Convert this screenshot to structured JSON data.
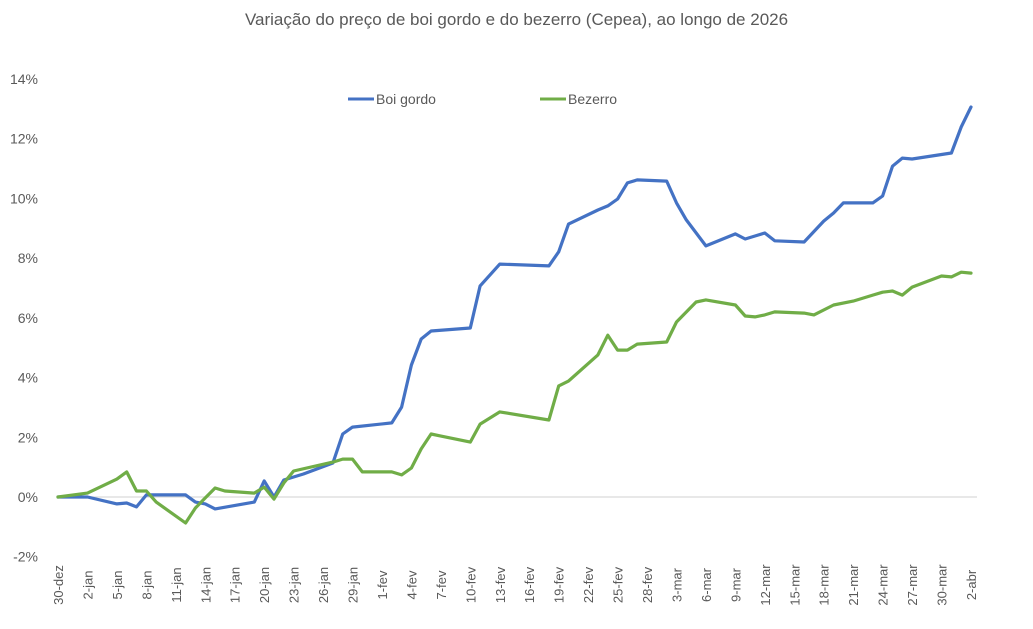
{
  "chart_data": {
    "type": "line",
    "title": "Variação do preço de boi gordo  e do bezerro (Cepea), ao longo de 2026",
    "xlabel": "",
    "ylabel": "",
    "ylim": [
      -0.02,
      0.14
    ],
    "yticks": [
      "-2%",
      "0%",
      "2%",
      "4%",
      "6%",
      "8%",
      "10%",
      "12%",
      "14%"
    ],
    "ytick_values": [
      -0.02,
      0,
      0.02,
      0.04,
      0.06,
      0.08,
      0.1,
      0.12,
      0.14
    ],
    "xticks": [
      "30-dez",
      "2-jan",
      "5-jan",
      "8-jan",
      "11-jan",
      "14-jan",
      "17-jan",
      "20-jan",
      "23-jan",
      "26-jan",
      "29-jan",
      "1-fev",
      "4-fev",
      "7-fev",
      "10-fev",
      "13-fev",
      "16-fev",
      "19-fev",
      "22-fev",
      "25-fev",
      "28-fev",
      "3-mar",
      "6-mar",
      "9-mar",
      "12-mar",
      "15-mar",
      "18-mar",
      "21-mar",
      "24-mar",
      "27-mar",
      "30-mar",
      "2-abr"
    ],
    "x_unit": "days since 30-dez",
    "grid": false,
    "zero_line": true,
    "legend_position": "top-inside",
    "series": [
      {
        "name": "Boi gordo",
        "color": "#4472C4",
        "points": [
          [
            0,
            0.0
          ],
          [
            3,
            0.0
          ],
          [
            6,
            -0.0023
          ],
          [
            7,
            -0.002
          ],
          [
            8,
            -0.0033
          ],
          [
            9,
            0.0007
          ],
          [
            13,
            0.0007
          ],
          [
            14,
            -0.0017
          ],
          [
            15,
            -0.0023
          ],
          [
            16,
            -0.004
          ],
          [
            20,
            -0.0017
          ],
          [
            21,
            0.0054
          ],
          [
            22,
            0.0
          ],
          [
            23,
            0.0057
          ],
          [
            24,
            0.0067
          ],
          [
            25,
            0.0077
          ],
          [
            28,
            0.0114
          ],
          [
            29,
            0.0211
          ],
          [
            30,
            0.0234
          ],
          [
            34,
            0.0248
          ],
          [
            35,
            0.0301
          ],
          [
            36,
            0.0442
          ],
          [
            37,
            0.0529
          ],
          [
            38,
            0.0556
          ],
          [
            42,
            0.0566
          ],
          [
            43,
            0.0707
          ],
          [
            45,
            0.078
          ],
          [
            50,
            0.0774
          ],
          [
            51,
            0.0821
          ],
          [
            52,
            0.0914
          ],
          [
            55,
            0.0961
          ],
          [
            56,
            0.0975
          ],
          [
            57,
            0.0998
          ],
          [
            58,
            0.1052
          ],
          [
            59,
            0.1062
          ],
          [
            62,
            0.1058
          ],
          [
            63,
            0.0985
          ],
          [
            64,
            0.0928
          ],
          [
            66,
            0.0841
          ],
          [
            69,
            0.0881
          ],
          [
            70,
            0.0864
          ],
          [
            71,
            0.0874
          ],
          [
            72,
            0.0884
          ],
          [
            73,
            0.0858
          ],
          [
            76,
            0.0854
          ],
          [
            78,
            0.0924
          ],
          [
            79,
            0.0951
          ],
          [
            80,
            0.0985
          ],
          [
            82,
            0.0985
          ],
          [
            83,
            0.0985
          ],
          [
            84,
            0.1008
          ],
          [
            85,
            0.1108
          ],
          [
            86,
            0.1135
          ],
          [
            87,
            0.1132
          ],
          [
            91,
            0.1152
          ],
          [
            92,
            0.1239
          ],
          [
            93,
            0.1306
          ]
        ]
      },
      {
        "name": "Bezerro",
        "color": "#70AD47",
        "points": [
          [
            0,
            0.0
          ],
          [
            3,
            0.0013
          ],
          [
            6,
            0.006
          ],
          [
            7,
            0.0084
          ],
          [
            8,
            0.002
          ],
          [
            9,
            0.002
          ],
          [
            10,
            -0.0017
          ],
          [
            13,
            -0.0087
          ],
          [
            14,
            -0.0037
          ],
          [
            15,
            -0.0003
          ],
          [
            16,
            0.003
          ],
          [
            17,
            0.002
          ],
          [
            20,
            0.0013
          ],
          [
            21,
            0.0033
          ],
          [
            22,
            -0.0007
          ],
          [
            23,
            0.0047
          ],
          [
            24,
            0.0087
          ],
          [
            28,
            0.0117
          ],
          [
            29,
            0.0127
          ],
          [
            30,
            0.0127
          ],
          [
            31,
            0.0084
          ],
          [
            34,
            0.0084
          ],
          [
            35,
            0.0074
          ],
          [
            36,
            0.0097
          ],
          [
            37,
            0.0161
          ],
          [
            38,
            0.0211
          ],
          [
            39,
            0.0204
          ],
          [
            42,
            0.0184
          ],
          [
            43,
            0.0244
          ],
          [
            45,
            0.0285
          ],
          [
            50,
            0.0258
          ],
          [
            51,
            0.0372
          ],
          [
            52,
            0.0388
          ],
          [
            55,
            0.0476
          ],
          [
            56,
            0.0542
          ],
          [
            57,
            0.0492
          ],
          [
            58,
            0.0492
          ],
          [
            59,
            0.0512
          ],
          [
            62,
            0.0519
          ],
          [
            63,
            0.0586
          ],
          [
            65,
            0.0653
          ],
          [
            66,
            0.066
          ],
          [
            69,
            0.0643
          ],
          [
            70,
            0.0606
          ],
          [
            71,
            0.0603
          ],
          [
            72,
            0.061
          ],
          [
            73,
            0.062
          ],
          [
            76,
            0.0616
          ],
          [
            77,
            0.061
          ],
          [
            79,
            0.0643
          ],
          [
            81,
            0.0656
          ],
          [
            83,
            0.0676
          ],
          [
            84,
            0.0686
          ],
          [
            85,
            0.069
          ],
          [
            86,
            0.0676
          ],
          [
            87,
            0.0703
          ],
          [
            90,
            0.074
          ],
          [
            91,
            0.0737
          ],
          [
            92,
            0.0753
          ],
          [
            93,
            0.075
          ]
        ]
      }
    ]
  },
  "legend": {
    "items": [
      {
        "label": "Boi gordo",
        "color": "#4472C4"
      },
      {
        "label": "Bezerro",
        "color": "#70AD47"
      }
    ]
  },
  "style": {
    "axis_text_color": "#595959",
    "zero_line_color": "#d9d9d9"
  }
}
